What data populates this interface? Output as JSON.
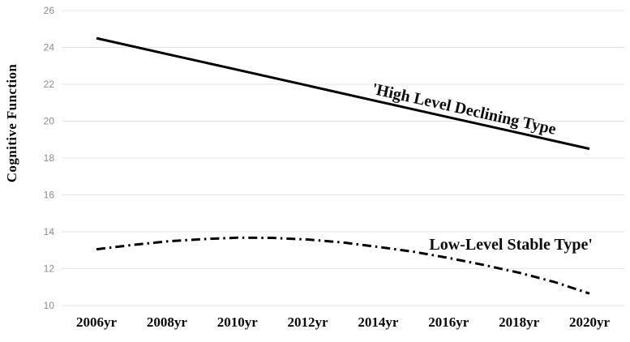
{
  "chart_data": {
    "type": "line",
    "title": "",
    "xlabel": "",
    "ylabel": "Cognitive Function",
    "xlim": [
      2006,
      2020
    ],
    "ylim": [
      10,
      26
    ],
    "grid": "horizontal-only",
    "legend_position": "none",
    "background": "#ffffff",
    "x_ticks": [
      2006,
      2008,
      2010,
      2012,
      2014,
      2016,
      2018,
      2020
    ],
    "x_tick_labels": [
      "2006yr",
      "2008yr",
      "2010yr",
      "2012yr",
      "2014yr",
      "2016yr",
      "2018yr",
      "2020yr"
    ],
    "y_ticks": [
      26,
      24,
      22,
      20,
      18,
      16,
      14,
      12,
      10
    ],
    "axis_colors": {
      "y_tick_label": "#8c8c8c",
      "x_tick_label": "#0a0a0a",
      "gridline": "#e4e4e4",
      "line": "#000000"
    },
    "series": [
      {
        "name": "High Level Declining Type",
        "line_style": "solid",
        "stroke": "#000000",
        "x": [
          2006,
          2008,
          2010,
          2012,
          2014,
          2016,
          2018,
          2020
        ],
        "values": [
          24.5,
          23.64,
          22.79,
          21.93,
          21.07,
          20.21,
          19.36,
          18.5
        ]
      },
      {
        "name": "Low-Level Stable Type",
        "line_style": "dash-dot",
        "stroke": "#000000",
        "x": [
          2006,
          2007,
          2008,
          2009,
          2010,
          2011,
          2012,
          2013,
          2014,
          2015,
          2016,
          2017,
          2018,
          2019,
          2020
        ],
        "values": [
          13.05,
          13.28,
          13.48,
          13.6,
          13.68,
          13.67,
          13.58,
          13.42,
          13.18,
          12.92,
          12.58,
          12.2,
          11.78,
          11.28,
          10.65
        ]
      }
    ],
    "annotations": [
      {
        "text": "'High Level Declining Type",
        "x": 2013.8,
        "y": 21.5,
        "rotation_deg": 12.6
      },
      {
        "text": "Low-Level Stable Type'",
        "x": 2015.45,
        "y": 13.03,
        "rotation_deg": 0
      }
    ]
  }
}
